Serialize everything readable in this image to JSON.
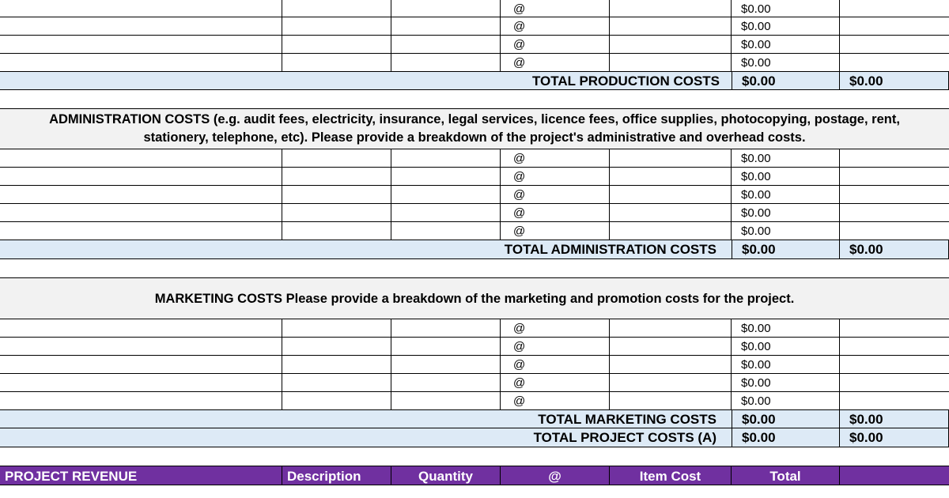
{
  "currency_zero": "$0.00",
  "at_symbol": "@",
  "production": {
    "line_amounts": [
      "$0.00",
      "$0.00",
      "$0.00",
      "$0.00"
    ],
    "total_label": "TOTAL PRODUCTION COSTS",
    "total_a": "$0.00",
    "total_b": "$0.00"
  },
  "administration": {
    "header_line1": "ADMINISTRATION COSTS (e.g. audit fees, electricity, insurance, legal services, licence fees, office supplies, photocopying, postage, rent,",
    "header_line2": "stationery, telephone, etc). Please provide a breakdown of the project's administrative and overhead costs.",
    "line_amounts": [
      "$0.00",
      "$0.00",
      "$0.00",
      "$0.00",
      "$0.00"
    ],
    "total_label": "TOTAL ADMINISTRATION COSTS",
    "total_a": "$0.00",
    "total_b": "$0.00"
  },
  "marketing": {
    "header": "MARKETING COSTS Please provide a breakdown of the marketing and promotion costs for the project.",
    "line_amounts": [
      "$0.00",
      "$0.00",
      "$0.00",
      "$0.00",
      "$0.00"
    ],
    "total_label": "TOTAL MARKETING COSTS",
    "total_a": "$0.00",
    "total_b": "$0.00"
  },
  "project_total": {
    "label": "TOTAL PROJECT COSTS (A)",
    "total_a": "$0.00",
    "total_b": "$0.00"
  },
  "revenue_header": {
    "title": "PROJECT REVENUE",
    "description": "Description",
    "quantity": "Quantity",
    "at": "@",
    "item_cost": "Item Cost",
    "total": "Total"
  },
  "colors": {
    "total_band": "#ddeaf6",
    "section_header": "#f2f2f2",
    "revenue_header": "#7030a0"
  }
}
